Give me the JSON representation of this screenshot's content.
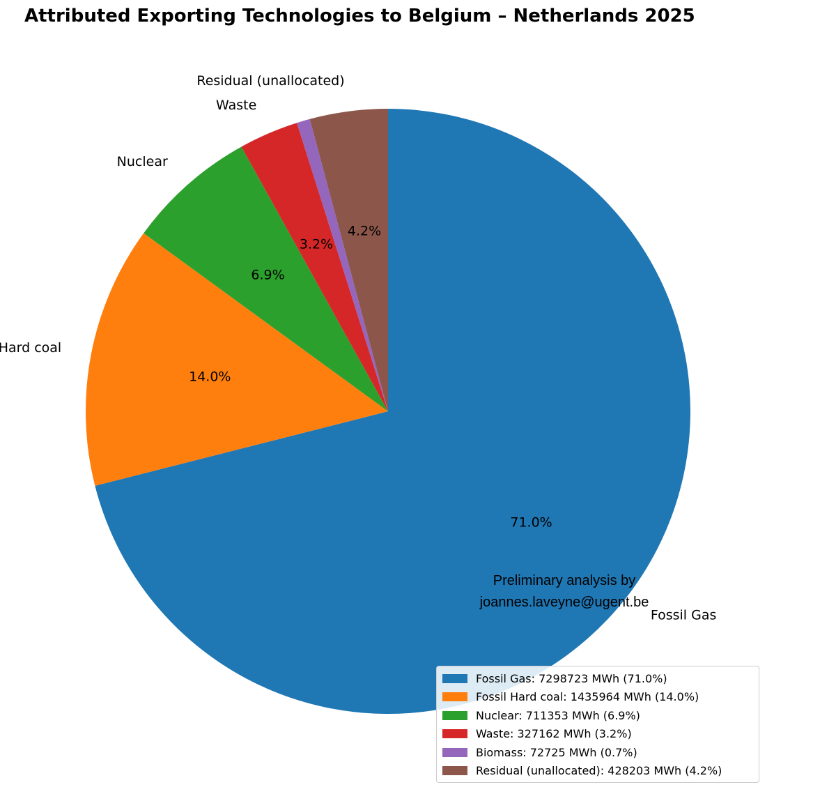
{
  "chart_data": {
    "type": "pie",
    "title": "Attributed Exporting Technologies to Belgium – Netherlands 2025",
    "unit": "MWh",
    "start_angle_deg": 90,
    "direction": "clockwise",
    "slices": [
      {
        "name": "Fossil Gas",
        "value": 7298723,
        "percent_label": "71.0%",
        "color": "#1f77b4",
        "outer_label": "Fossil Gas",
        "legend": "Fossil Gas: 7298723 MWh (71.0%)"
      },
      {
        "name": "Fossil Hard coal",
        "value": 1435964,
        "percent_label": "14.0%",
        "color": "#ff7f0e",
        "outer_label": "Fossil Hard coal",
        "legend": "Fossil Hard coal: 1435964 MWh (14.0%)"
      },
      {
        "name": "Nuclear",
        "value": 711353,
        "percent_label": "6.9%",
        "color": "#2ca02c",
        "outer_label": "Nuclear",
        "legend": "Nuclear: 711353 MWh (6.9%)"
      },
      {
        "name": "Waste",
        "value": 327162,
        "percent_label": "3.2%",
        "color": "#d62728",
        "outer_label": "Waste",
        "legend": "Waste: 327162 MWh (3.2%)"
      },
      {
        "name": "Biomass",
        "value": 72725,
        "percent_label": "",
        "color": "#9467bd",
        "outer_label": "",
        "legend": "Biomass: 72725 MWh (0.7%)"
      },
      {
        "name": "Residual (unallocated)",
        "value": 428203,
        "percent_label": "4.2%",
        "color": "#8c564b",
        "outer_label": "Residual (unallocated)",
        "legend": "Residual (unallocated): 428203 MWh (4.2%)"
      }
    ],
    "legend_position": "lower-right",
    "annotation": [
      "Preliminary analysis by",
      "joannes.laveyne@ugent.be"
    ]
  }
}
